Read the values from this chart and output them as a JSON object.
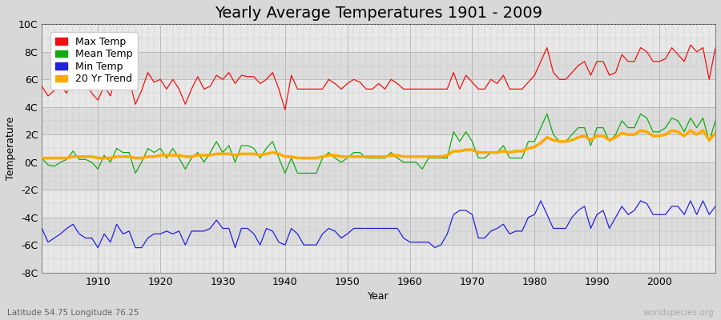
{
  "title": "Yearly Average Temperatures 1901 - 2009",
  "xlabel": "Year",
  "ylabel": "Temperature",
  "lat_lon_label": "Latitude 54.75 Longitude 76.25",
  "source_label": "worldspecies.org",
  "years": [
    1901,
    1902,
    1903,
    1904,
    1905,
    1906,
    1907,
    1908,
    1909,
    1910,
    1911,
    1912,
    1913,
    1914,
    1915,
    1916,
    1917,
    1918,
    1919,
    1920,
    1921,
    1922,
    1923,
    1924,
    1925,
    1926,
    1927,
    1928,
    1929,
    1930,
    1931,
    1932,
    1933,
    1934,
    1935,
    1936,
    1937,
    1938,
    1939,
    1940,
    1941,
    1942,
    1943,
    1944,
    1945,
    1946,
    1947,
    1948,
    1949,
    1950,
    1951,
    1952,
    1953,
    1954,
    1955,
    1956,
    1957,
    1958,
    1959,
    1960,
    1961,
    1962,
    1963,
    1964,
    1965,
    1966,
    1967,
    1968,
    1969,
    1970,
    1971,
    1972,
    1973,
    1974,
    1975,
    1976,
    1977,
    1978,
    1979,
    1980,
    1981,
    1982,
    1983,
    1984,
    1985,
    1986,
    1987,
    1988,
    1989,
    1990,
    1991,
    1992,
    1993,
    1994,
    1995,
    1996,
    1997,
    1998,
    1999,
    2000,
    2001,
    2002,
    2003,
    2004,
    2005,
    2006,
    2007,
    2008,
    2009
  ],
  "max_temp": [
    5.5,
    4.8,
    5.2,
    5.5,
    5.0,
    6.7,
    6.2,
    5.8,
    5.0,
    4.5,
    5.5,
    4.8,
    6.5,
    6.3,
    6.0,
    4.2,
    5.2,
    6.5,
    5.8,
    6.0,
    5.3,
    6.0,
    5.3,
    4.2,
    5.3,
    6.2,
    5.3,
    5.5,
    6.3,
    6.0,
    6.5,
    5.7,
    6.3,
    6.2,
    6.2,
    5.7,
    6.0,
    6.5,
    5.3,
    3.8,
    6.3,
    5.3,
    5.3,
    5.3,
    5.3,
    5.3,
    6.0,
    5.7,
    5.3,
    5.7,
    6.0,
    5.8,
    5.3,
    5.3,
    5.7,
    5.3,
    6.0,
    5.7,
    5.3,
    5.3,
    5.3,
    5.3,
    5.3,
    5.3,
    5.3,
    5.3,
    6.5,
    5.3,
    6.3,
    5.8,
    5.3,
    5.3,
    6.0,
    5.7,
    6.3,
    5.3,
    5.3,
    5.3,
    5.8,
    6.3,
    7.3,
    8.3,
    6.5,
    6.0,
    6.0,
    6.5,
    7.0,
    7.3,
    6.3,
    7.3,
    7.3,
    6.3,
    6.5,
    7.8,
    7.3,
    7.3,
    8.3,
    8.0,
    7.3,
    7.3,
    7.5,
    8.3,
    7.8,
    7.3,
    8.5,
    8.0,
    8.3,
    6.0,
    8.3
  ],
  "mean_temp": [
    0.3,
    -0.2,
    -0.3,
    0.0,
    0.2,
    0.8,
    0.2,
    0.2,
    0.0,
    -0.5,
    0.5,
    0.0,
    1.0,
    0.7,
    0.7,
    -0.8,
    0.0,
    1.0,
    0.7,
    1.0,
    0.3,
    1.0,
    0.3,
    -0.5,
    0.3,
    0.7,
    0.0,
    0.7,
    1.5,
    0.7,
    1.2,
    0.0,
    1.2,
    1.2,
    1.0,
    0.3,
    1.0,
    1.5,
    0.3,
    -0.8,
    0.3,
    -0.8,
    -0.8,
    -0.8,
    -0.8,
    0.3,
    0.7,
    0.3,
    0.0,
    0.3,
    0.7,
    0.7,
    0.3,
    0.3,
    0.3,
    0.3,
    0.7,
    0.3,
    0.0,
    0.0,
    0.0,
    -0.5,
    0.3,
    0.3,
    0.3,
    0.3,
    2.2,
    1.5,
    2.2,
    1.5,
    0.3,
    0.3,
    0.7,
    0.7,
    1.2,
    0.3,
    0.3,
    0.3,
    1.5,
    1.5,
    2.5,
    3.5,
    2.0,
    1.5,
    1.5,
    2.0,
    2.5,
    2.5,
    1.2,
    2.5,
    2.5,
    1.5,
    2.0,
    3.0,
    2.5,
    2.5,
    3.5,
    3.2,
    2.2,
    2.2,
    2.5,
    3.2,
    3.0,
    2.2,
    3.2,
    2.5,
    3.2,
    1.5,
    3.0
  ],
  "min_temp": [
    -4.8,
    -5.8,
    -5.5,
    -5.2,
    -4.8,
    -4.5,
    -5.2,
    -5.5,
    -5.5,
    -6.2,
    -5.2,
    -5.8,
    -4.5,
    -5.2,
    -5.0,
    -6.2,
    -6.2,
    -5.5,
    -5.2,
    -5.2,
    -5.0,
    -5.2,
    -5.0,
    -6.0,
    -5.0,
    -5.0,
    -5.0,
    -4.8,
    -4.2,
    -4.8,
    -4.8,
    -6.2,
    -4.8,
    -4.8,
    -5.2,
    -6.0,
    -4.8,
    -5.0,
    -5.8,
    -6.0,
    -4.8,
    -5.2,
    -6.0,
    -6.0,
    -6.0,
    -5.2,
    -4.8,
    -5.0,
    -5.5,
    -5.2,
    -4.8,
    -4.8,
    -4.8,
    -4.8,
    -4.8,
    -4.8,
    -4.8,
    -4.8,
    -5.5,
    -5.8,
    -5.8,
    -5.8,
    -5.8,
    -6.2,
    -6.0,
    -5.2,
    -3.8,
    -3.5,
    -3.5,
    -3.8,
    -5.5,
    -5.5,
    -5.0,
    -4.8,
    -4.5,
    -5.2,
    -5.0,
    -5.0,
    -4.0,
    -3.8,
    -2.8,
    -3.8,
    -4.8,
    -4.8,
    -4.8,
    -4.0,
    -3.5,
    -3.2,
    -4.8,
    -3.8,
    -3.5,
    -4.8,
    -4.0,
    -3.2,
    -3.8,
    -3.5,
    -2.8,
    -3.0,
    -3.8,
    -3.8,
    -3.8,
    -3.2,
    -3.2,
    -3.8,
    -2.8,
    -3.8,
    -2.8,
    -3.8,
    -3.2
  ],
  "trend_20yr": [
    0.3,
    0.3,
    0.3,
    0.3,
    0.3,
    0.4,
    0.4,
    0.4,
    0.4,
    0.3,
    0.3,
    0.3,
    0.4,
    0.4,
    0.4,
    0.3,
    0.3,
    0.4,
    0.4,
    0.5,
    0.5,
    0.5,
    0.5,
    0.4,
    0.4,
    0.5,
    0.5,
    0.5,
    0.6,
    0.6,
    0.6,
    0.5,
    0.6,
    0.6,
    0.6,
    0.5,
    0.6,
    0.7,
    0.6,
    0.4,
    0.4,
    0.3,
    0.3,
    0.3,
    0.3,
    0.4,
    0.5,
    0.5,
    0.4,
    0.4,
    0.4,
    0.4,
    0.4,
    0.4,
    0.4,
    0.4,
    0.5,
    0.5,
    0.4,
    0.4,
    0.4,
    0.4,
    0.4,
    0.4,
    0.4,
    0.5,
    0.8,
    0.8,
    0.9,
    0.9,
    0.7,
    0.7,
    0.7,
    0.7,
    0.8,
    0.7,
    0.8,
    0.8,
    1.0,
    1.1,
    1.4,
    1.8,
    1.6,
    1.5,
    1.5,
    1.6,
    1.8,
    1.9,
    1.6,
    1.9,
    1.9,
    1.6,
    1.8,
    2.1,
    2.0,
    2.0,
    2.3,
    2.2,
    1.9,
    1.9,
    2.0,
    2.3,
    2.2,
    1.9,
    2.3,
    2.0,
    2.3,
    1.6,
    2.1
  ],
  "ylim": [
    -8,
    10
  ],
  "yticks": [
    -8,
    -6,
    -4,
    -2,
    0,
    2,
    4,
    6,
    8,
    10
  ],
  "ytick_labels": [
    "-8C",
    "-6C",
    "-4C",
    "-2C",
    "0C",
    "2C",
    "4C",
    "6C",
    "8C",
    "10C"
  ],
  "xlim": [
    1901,
    2009
  ],
  "xticks": [
    1910,
    1920,
    1930,
    1940,
    1950,
    1960,
    1970,
    1980,
    1990,
    2000
  ],
  "max_color": "#ee1111",
  "mean_color": "#11aa11",
  "min_color": "#2222dd",
  "trend_color": "#ffaa00",
  "bg_color": "#d8d8d8",
  "plot_bg_color": "#e8e8e8",
  "band_colors": [
    "#e0e0e0",
    "#d0d0d0"
  ],
  "grid_major_color": "#bbbbbb",
  "grid_minor_color": "#cccccc",
  "title_fontsize": 14,
  "axis_fontsize": 9,
  "legend_fontsize": 9
}
